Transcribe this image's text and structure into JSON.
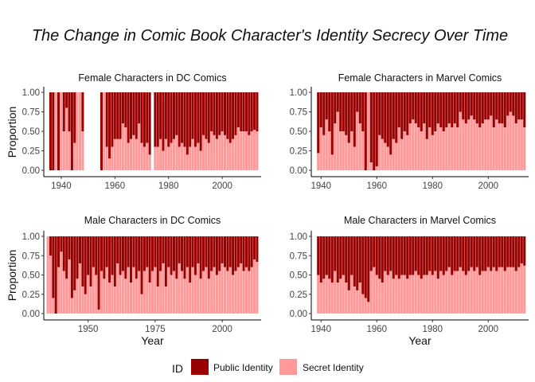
{
  "chart_data": {
    "type": "bar",
    "title": "The Change in Comic Book Character's Identity Secrecy Over Time",
    "legend": {
      "title": "ID",
      "position": "bottom",
      "entries": [
        {
          "label": "Public Identity",
          "color": "#990000"
        },
        {
          "label": "Secret Identity",
          "color": "#ff9999"
        }
      ]
    },
    "panels": [
      {
        "title": "Female Characters in DC Comics",
        "xlabel": "",
        "ylabel": "Proportion",
        "xlim": [
          1933.5,
          2014.5
        ],
        "ylim": [
          0,
          1
        ],
        "xticks": [
          1940,
          1960,
          1980,
          2000
        ],
        "yticks": [
          "0.00",
          "0.25",
          "0.50",
          "0.75",
          "1.00"
        ],
        "x": [
          1936,
          1937,
          1938,
          1939,
          1940,
          1941,
          1942,
          1943,
          1944,
          1945,
          1946,
          1947,
          1948,
          1955,
          1956,
          1957,
          1958,
          1959,
          1960,
          1961,
          1962,
          1963,
          1964,
          1965,
          1966,
          1967,
          1968,
          1969,
          1970,
          1971,
          1972,
          1973,
          1975,
          1976,
          1977,
          1978,
          1979,
          1980,
          1981,
          1982,
          1983,
          1984,
          1985,
          1986,
          1987,
          1988,
          1989,
          1990,
          1991,
          1992,
          1993,
          1994,
          1995,
          1996,
          1997,
          1998,
          1999,
          2000,
          2001,
          2002,
          2003,
          2004,
          2005,
          2006,
          2007,
          2008,
          2009,
          2010,
          2011,
          2012,
          2013
        ],
        "secret": [
          0,
          0,
          1,
          0,
          1,
          0.5,
          0.8,
          0.5,
          0,
          0.35,
          1,
          1,
          0.5,
          0,
          1,
          0.3,
          0.15,
          0.3,
          0.4,
          0.4,
          0.4,
          0.6,
          0.55,
          0.35,
          0.4,
          0.45,
          0.4,
          0.6,
          0.35,
          0.3,
          0.35,
          0.2,
          0.3,
          0.3,
          0.4,
          0.25,
          0.4,
          0.3,
          0.35,
          0.4,
          0.45,
          0.3,
          0.35,
          0.3,
          0.2,
          0.3,
          0.4,
          0.3,
          0.35,
          0.25,
          0.45,
          0.4,
          0.35,
          0.5,
          0.45,
          0.4,
          0.45,
          0.5,
          0.45,
          0.4,
          0.35,
          0.4,
          0.45,
          0.55,
          0.5,
          0.5,
          0.5,
          0.45,
          0.5,
          0.52,
          0.5
        ]
      },
      {
        "title": "Female Characters in Marvel Comics",
        "xlabel": "",
        "ylabel": "",
        "xlim": [
          1936.5,
          2014.5
        ],
        "ylim": [
          0,
          1
        ],
        "xticks": [
          1940,
          1960,
          1980,
          2000
        ],
        "yticks": [
          "0.00",
          "0.25",
          "0.50",
          "0.75",
          "1.00"
        ],
        "x": [
          1939,
          1940,
          1941,
          1942,
          1943,
          1944,
          1945,
          1946,
          1947,
          1948,
          1949,
          1950,
          1951,
          1952,
          1953,
          1954,
          1955,
          1956,
          1957,
          1958,
          1959,
          1960,
          1961,
          1962,
          1963,
          1964,
          1965,
          1966,
          1967,
          1968,
          1969,
          1970,
          1971,
          1972,
          1973,
          1974,
          1975,
          1976,
          1977,
          1978,
          1979,
          1980,
          1981,
          1982,
          1983,
          1984,
          1985,
          1986,
          1987,
          1988,
          1989,
          1990,
          1991,
          1992,
          1993,
          1994,
          1995,
          1996,
          1997,
          1998,
          1999,
          2000,
          2001,
          2002,
          2003,
          2004,
          2005,
          2006,
          2007,
          2008,
          2009,
          2010,
          2011,
          2012,
          2013
        ],
        "secret": [
          0.22,
          0.55,
          0.45,
          0.65,
          0.5,
          0.2,
          0.6,
          0.75,
          0.5,
          0.5,
          0.45,
          0.35,
          0.5,
          0.3,
          0.75,
          0.6,
          0.5,
          0,
          1,
          0.1,
          0,
          0.05,
          0.45,
          0.4,
          0.35,
          0.3,
          0.2,
          0.4,
          0.35,
          0.55,
          0.4,
          0.5,
          0.45,
          0.6,
          0.65,
          0.6,
          0.55,
          0.5,
          0.6,
          0.4,
          0.55,
          0.45,
          0.5,
          0.6,
          0.55,
          0.5,
          0.55,
          0.6,
          0.55,
          0.6,
          0.55,
          0.75,
          0.65,
          0.6,
          0.65,
          0.7,
          0.65,
          0.6,
          0.55,
          0.6,
          0.65,
          0.65,
          0.7,
          0.55,
          0.65,
          0.6,
          0.6,
          0.55,
          0.7,
          0.75,
          0.7,
          0.6,
          0.65,
          0.65,
          0.55
        ]
      },
      {
        "title": "Male Characters in DC Comics",
        "xlabel": "Year",
        "ylabel": "Proportion",
        "xlim": [
          1933.5,
          2014.5
        ],
        "ylim": [
          0,
          1
        ],
        "xticks": [
          1950,
          1975,
          2000
        ],
        "yticks": [
          "0.00",
          "0.25",
          "0.50",
          "0.75",
          "1.00"
        ],
        "x": [
          1935,
          1936,
          1937,
          1938,
          1939,
          1940,
          1941,
          1942,
          1943,
          1944,
          1945,
          1946,
          1947,
          1948,
          1949,
          1950,
          1951,
          1952,
          1953,
          1954,
          1955,
          1956,
          1957,
          1958,
          1959,
          1960,
          1961,
          1962,
          1963,
          1964,
          1965,
          1966,
          1967,
          1968,
          1969,
          1970,
          1971,
          1972,
          1973,
          1974,
          1975,
          1976,
          1977,
          1978,
          1979,
          1980,
          1981,
          1982,
          1983,
          1984,
          1985,
          1986,
          1987,
          1988,
          1989,
          1990,
          1991,
          1992,
          1993,
          1994,
          1995,
          1996,
          1997,
          1998,
          1999,
          2000,
          2001,
          2002,
          2003,
          2004,
          2005,
          2006,
          2007,
          2008,
          2009,
          2010,
          2011,
          2012,
          2013
        ],
        "secret": [
          1,
          0.75,
          0.2,
          0,
          0.6,
          0.8,
          0.55,
          0.45,
          0.7,
          0.2,
          0.3,
          0.45,
          0.65,
          0.35,
          0.25,
          0.5,
          0.35,
          0.6,
          0.5,
          0.05,
          0.55,
          0.45,
          0.6,
          0.4,
          0.5,
          0.35,
          0.65,
          0.5,
          0.55,
          0.45,
          0.6,
          0.4,
          0.6,
          0.45,
          0.55,
          0.25,
          0.55,
          0.6,
          0.4,
          0.55,
          0.6,
          0.35,
          0.55,
          0.65,
          0.35,
          0.6,
          0.5,
          0.55,
          0.45,
          0.65,
          0.55,
          0.45,
          0.6,
          0.4,
          0.6,
          0.5,
          0.65,
          0.45,
          0.55,
          0.6,
          0.45,
          0.55,
          0.6,
          0.5,
          0.55,
          0.65,
          0.6,
          0.55,
          0.6,
          0.5,
          0.55,
          0.6,
          0.65,
          0.55,
          0.6,
          0.55,
          0.6,
          0.7,
          0.67
        ]
      },
      {
        "title": "Male Characters in Marvel Comics",
        "xlabel": "Year",
        "ylabel": "",
        "xlim": [
          1936.5,
          2014.5
        ],
        "ylim": [
          0,
          1
        ],
        "xticks": [
          1940,
          1960,
          1980,
          2000
        ],
        "yticks": [
          "0.00",
          "0.25",
          "0.50",
          "0.75",
          "1.00"
        ],
        "x": [
          1939,
          1940,
          1941,
          1942,
          1943,
          1944,
          1945,
          1946,
          1947,
          1948,
          1949,
          1950,
          1951,
          1952,
          1953,
          1954,
          1955,
          1956,
          1957,
          1958,
          1959,
          1960,
          1961,
          1962,
          1963,
          1964,
          1965,
          1966,
          1967,
          1968,
          1969,
          1970,
          1971,
          1972,
          1973,
          1974,
          1975,
          1976,
          1977,
          1978,
          1979,
          1980,
          1981,
          1982,
          1983,
          1984,
          1985,
          1986,
          1987,
          1988,
          1989,
          1990,
          1991,
          1992,
          1993,
          1994,
          1995,
          1996,
          1997,
          1998,
          1999,
          2000,
          2001,
          2002,
          2003,
          2004,
          2005,
          2006,
          2007,
          2008,
          2009,
          2010,
          2011,
          2012,
          2013
        ],
        "secret": [
          0.5,
          0.4,
          0.45,
          0.5,
          0.45,
          0.4,
          0.55,
          0.4,
          0.45,
          0.5,
          0.4,
          0.3,
          0.5,
          0.35,
          0.3,
          0.4,
          0.25,
          0.2,
          0.15,
          0.55,
          0.6,
          0.5,
          0.45,
          0.4,
          0.55,
          0.5,
          0.55,
          0.45,
          0.5,
          0.45,
          0.5,
          0.5,
          0.45,
          0.5,
          0.5,
          0.55,
          0.5,
          0.45,
          0.5,
          0.5,
          0.55,
          0.5,
          0.55,
          0.45,
          0.55,
          0.5,
          0.55,
          0.6,
          0.5,
          0.55,
          0.55,
          0.6,
          0.55,
          0.5,
          0.55,
          0.6,
          0.55,
          0.6,
          0.5,
          0.55,
          0.55,
          0.6,
          0.55,
          0.6,
          0.55,
          0.6,
          0.6,
          0.55,
          0.6,
          0.6,
          0.6,
          0.55,
          0.6,
          0.65,
          0.62
        ]
      }
    ]
  }
}
